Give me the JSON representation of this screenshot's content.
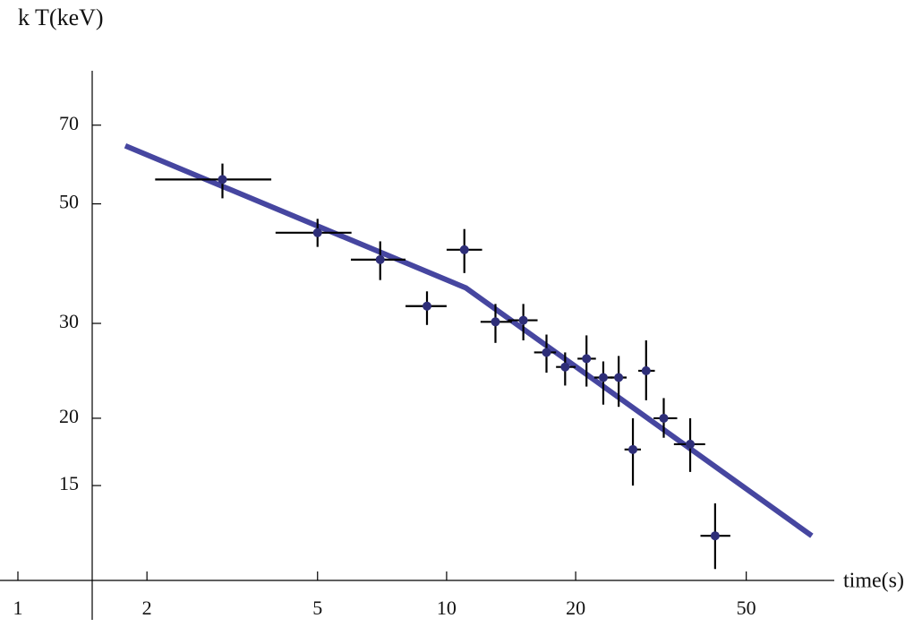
{
  "chart_data": {
    "type": "scatter",
    "x_label": "time(s)",
    "y_label": "k T(keV)",
    "log_x": true,
    "log_y": true,
    "xlim": [
      1,
      75
    ],
    "ylim": [
      10,
      85
    ],
    "xticks": [
      1,
      2,
      5,
      10,
      20,
      50
    ],
    "yticks": [
      15,
      20,
      30,
      50,
      70
    ],
    "points": {
      "color": "#2e2e78",
      "x": [
        3.0,
        5.0,
        7.0,
        9.0,
        11.0,
        13.0,
        15.1,
        17.1,
        18.9,
        21.2,
        23.2,
        25.2,
        27.2,
        29.2,
        32.1,
        37.0,
        42.3
      ],
      "y": [
        55.5,
        44.2,
        39.4,
        32.3,
        41.1,
        30.2,
        30.4,
        26.5,
        24.9,
        25.8,
        23.8,
        23.8,
        17.5,
        24.5,
        20.0,
        17.9,
        12.1
      ],
      "x_low": [
        2.09,
        3.99,
        5.98,
        8.02,
        10.0,
        12.0,
        13.9,
        16.0,
        18.0,
        20.2,
        22.1,
        24.1,
        26.0,
        28.0,
        30.4,
        33.9,
        39.1
      ],
      "x_high": [
        3.9,
        6.0,
        8.02,
        10.0,
        12.1,
        14.2,
        16.3,
        18.0,
        20.0,
        22.3,
        24.4,
        26.3,
        28.4,
        30.6,
        34.5,
        40.1,
        45.9
      ],
      "y_low": [
        51.2,
        41.6,
        36.1,
        29.8,
        37.2,
        27.6,
        27.9,
        24.3,
        23.0,
        22.9,
        21.2,
        21.0,
        15.0,
        21.6,
        18.4,
        15.9,
        10.5
      ],
      "y_high": [
        59.4,
        46.9,
        42.6,
        34.4,
        44.9,
        32.6,
        32.6,
        28.6,
        26.5,
        28.5,
        25.5,
        26.1,
        20.0,
        27.9,
        21.8,
        20.0,
        13.9
      ]
    },
    "fit": {
      "color": "#4646a0",
      "x": [
        1.78,
        11.1,
        71.1
      ],
      "y": [
        64.1,
        34.9,
        12.1
      ]
    }
  }
}
